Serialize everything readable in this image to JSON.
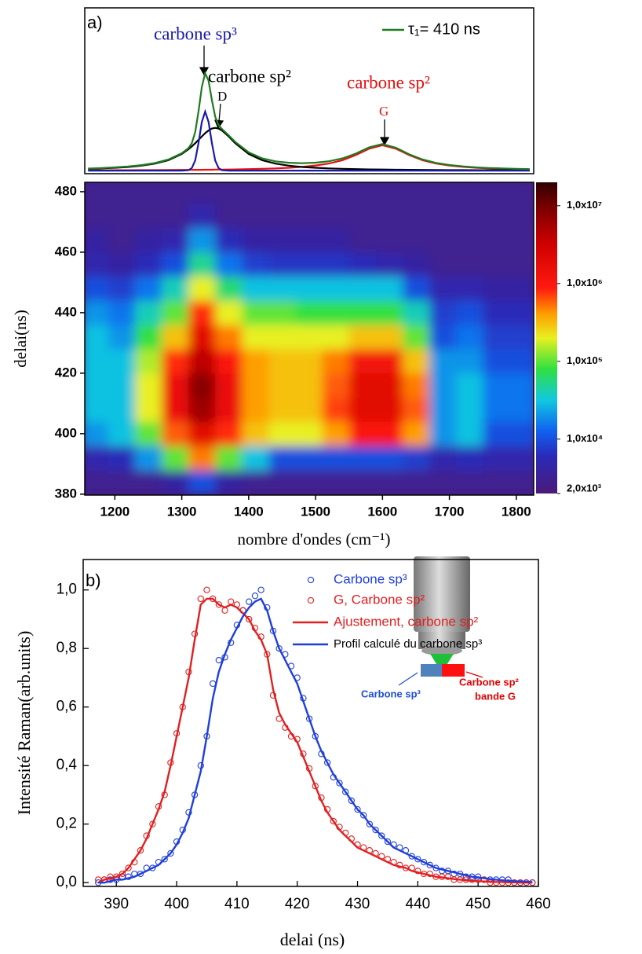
{
  "chart_data": [
    {
      "type": "line",
      "label": "a)",
      "x": [
        1160,
        1180,
        1200,
        1220,
        1240,
        1260,
        1280,
        1300,
        1310,
        1315,
        1320,
        1325,
        1330,
        1335,
        1340,
        1345,
        1350,
        1355,
        1360,
        1370,
        1380,
        1400,
        1420,
        1440,
        1460,
        1480,
        1500,
        1520,
        1540,
        1560,
        1580,
        1600,
        1620,
        1640,
        1660,
        1680,
        1700,
        1720,
        1740,
        1760,
        1780,
        1800,
        1820
      ],
      "xlim": [
        1155,
        1826
      ],
      "ylim": [
        -0.03,
        1.6
      ],
      "series": [
        {
          "color": "#e81010",
          "values": [
            0.003,
            0.003,
            0.004,
            0.004,
            0.005,
            0.005,
            0.006,
            0.007,
            0.007,
            0.007,
            0.008,
            0.008,
            0.008,
            0.009,
            0.009,
            0.009,
            0.01,
            0.01,
            0.01,
            0.011,
            0.012,
            0.015,
            0.018,
            0.022,
            0.028,
            0.037,
            0.05,
            0.07,
            0.102,
            0.152,
            0.216,
            0.25,
            0.216,
            0.152,
            0.102,
            0.07,
            0.05,
            0.037,
            0.028,
            0.022,
            0.018,
            0.015,
            0.012
          ]
        },
        {
          "color": "#000000",
          "values": [
            0.018,
            0.022,
            0.028,
            0.036,
            0.049,
            0.069,
            0.103,
            0.164,
            0.21,
            0.238,
            0.269,
            0.302,
            0.336,
            0.368,
            0.395,
            0.414,
            0.42,
            0.414,
            0.395,
            0.336,
            0.269,
            0.164,
            0.103,
            0.069,
            0.049,
            0.036,
            0.028,
            0.022,
            0.018,
            0.015,
            0.012,
            0.011,
            0.009,
            0.008,
            0.007,
            0.006,
            0.005,
            0.005,
            0.004,
            0.004,
            0.004,
            0.003,
            0.003
          ]
        },
        {
          "color": "#1a1aa8",
          "values": [
            0,
            0,
            0,
            0,
            0,
            0,
            0,
            0,
            0.004,
            0.025,
            0.1,
            0.27,
            0.48,
            0.58,
            0.48,
            0.27,
            0.1,
            0.025,
            0.004,
            0,
            0,
            0,
            0,
            0,
            0,
            0,
            0,
            0,
            0,
            0,
            0,
            0,
            0,
            0,
            0,
            0,
            0,
            0,
            0,
            0,
            0,
            0,
            0
          ]
        },
        {
          "name": "τ₁= 410 ns",
          "color": "#1f7a1f",
          "values": [
            0.02,
            0.025,
            0.032,
            0.04,
            0.054,
            0.074,
            0.109,
            0.171,
            0.221,
            0.27,
            0.377,
            0.58,
            0.824,
            0.957,
            0.884,
            0.693,
            0.53,
            0.449,
            0.409,
            0.347,
            0.281,
            0.179,
            0.121,
            0.091,
            0.077,
            0.073,
            0.078,
            0.092,
            0.12,
            0.167,
            0.228,
            0.261,
            0.225,
            0.16,
            0.109,
            0.076,
            0.055,
            0.042,
            0.032,
            0.026,
            0.022,
            0.018,
            0.015
          ]
        }
      ],
      "annotations": [
        {
          "text": "carbone sp³",
          "color": "#1a1aa8"
        },
        {
          "text": "carbone sp²",
          "color": "#000000"
        },
        {
          "text": "D",
          "color": "#000000"
        },
        {
          "text": "carbone sp²",
          "color": "#e81010"
        },
        {
          "text": "G",
          "color": "#e81010"
        }
      ]
    },
    {
      "type": "heatmap",
      "xlabel": "nombre d'ondes (cm⁻¹)",
      "ylabel": "delai(ns)",
      "x": [
        1170,
        1210,
        1250,
        1290,
        1330,
        1370,
        1410,
        1450,
        1490,
        1530,
        1570,
        1610,
        1650,
        1690,
        1730,
        1770,
        1810
      ],
      "y": [
        384,
        392,
        400,
        408,
        416,
        424,
        432,
        440,
        448,
        456,
        464,
        472,
        480
      ],
      "z": [
        [
          3000.0,
          3000.0,
          3000.0,
          4000.0,
          10000.0,
          4000.0,
          3000.0,
          3000.0,
          3000.0,
          3000.0,
          3000.0,
          3000.0,
          3000.0,
          3000.0,
          3000.0,
          3000.0,
          3000.0
        ],
        [
          5000.0,
          6000.0,
          20000.0,
          100000.0,
          500000.0,
          100000.0,
          30000.0,
          10000.0,
          10000.0,
          10000.0,
          10000.0,
          10000.0,
          8000.0,
          5000.0,
          6000.0,
          5000.0,
          5000.0
        ],
        [
          20000.0,
          30000.0,
          100000.0,
          600000.0,
          2000000.0,
          800000.0,
          300000.0,
          200000.0,
          200000.0,
          400000.0,
          1000000.0,
          1000000.0,
          400000.0,
          20000.0,
          30000.0,
          10000.0,
          10000.0
        ],
        [
          30000.0,
          30000.0,
          200000.0,
          1500000.0,
          6000000.0,
          1500000.0,
          400000.0,
          300000.0,
          300000.0,
          700000.0,
          2000000.0,
          2000000.0,
          600000.0,
          20000.0,
          30000.0,
          15000.0,
          15000.0
        ],
        [
          30000.0,
          30000.0,
          200000.0,
          1500000.0,
          8000000.0,
          1500000.0,
          400000.0,
          300000.0,
          300000.0,
          600000.0,
          2000000.0,
          2000000.0,
          500000.0,
          20000.0,
          30000.0,
          15000.0,
          15000.0
        ],
        [
          30000.0,
          30000.0,
          150000.0,
          800000.0,
          4000000.0,
          1000000.0,
          400000.0,
          300000.0,
          300000.0,
          500000.0,
          1200000.0,
          1200000.0,
          300000.0,
          20000.0,
          20000.0,
          10000.0,
          10000.0
        ],
        [
          30000.0,
          20000.0,
          80000.0,
          300000.0,
          2000000.0,
          500000.0,
          200000.0,
          200000.0,
          200000.0,
          200000.0,
          300000.0,
          300000.0,
          100000.0,
          10000.0,
          15000.0,
          8000.0,
          8000.0
        ],
        [
          20000.0,
          15000.0,
          40000.0,
          100000.0,
          800000.0,
          200000.0,
          100000.0,
          100000.0,
          80000.0,
          80000.0,
          80000.0,
          80000.0,
          40000.0,
          8000.0,
          10000.0,
          6000.0,
          6000.0
        ],
        [
          10000.0,
          8000.0,
          15000.0,
          40000.0,
          200000.0,
          60000.0,
          30000.0,
          30000.0,
          30000.0,
          30000.0,
          30000.0,
          30000.0,
          10000.0,
          5000.0,
          5000.0,
          4000.0,
          4000.0
        ],
        [
          5000.0,
          4000.0,
          6000.0,
          10000.0,
          50000.0,
          15000.0,
          8000.0,
          7000.0,
          7000.0,
          7000.0,
          6000.0,
          5000.0,
          4000.0,
          3000.0,
          3000.0,
          3000.0,
          3000.0
        ],
        [
          4000.0,
          3000.0,
          4000.0,
          5000.0,
          20000.0,
          6000.0,
          4000.0,
          4000.0,
          4000.0,
          4000.0,
          3000.0,
          3000.0,
          3000.0,
          3000.0,
          3000.0,
          3000.0,
          3000.0
        ],
        [
          3000.0,
          3000.0,
          3000.0,
          3000.0,
          5000.0,
          3000.0,
          3000.0,
          3000.0,
          3000.0,
          3000.0,
          3000.0,
          3000.0,
          3000.0,
          3000.0,
          3000.0,
          3000.0,
          3000.0
        ],
        [
          3000.0,
          3000.0,
          3000.0,
          3000.0,
          3000.0,
          3000.0,
          3000.0,
          3000.0,
          3000.0,
          3000.0,
          3000.0,
          3000.0,
          3000.0,
          3000.0,
          3000.0,
          3000.0,
          3000.0
        ]
      ],
      "xlim": [
        1155,
        1826
      ],
      "ylim": [
        379.7,
        483.1
      ],
      "xticks": [
        1200,
        1300,
        1400,
        1500,
        1600,
        1700,
        1800
      ],
      "yticks": [
        380,
        400,
        420,
        440,
        460,
        480
      ],
      "zscale": "log",
      "zlim": [
        2000,
        20000000
      ],
      "zticks": [
        {
          "value": 2000,
          "label": "2,0x10³"
        },
        {
          "value": 10000,
          "label": "1,0x10⁴"
        },
        {
          "value": 100000,
          "label": "1,0x10⁵"
        },
        {
          "value": 1000000,
          "label": "1,0x10⁶"
        },
        {
          "value": 10000000,
          "label": "1,0x10⁷"
        }
      ],
      "colorscale": [
        [
          0,
          "#4b1a7a"
        ],
        [
          0.12,
          "#2a2ab8"
        ],
        [
          0.2,
          "#1060f0"
        ],
        [
          0.3,
          "#10c8e0"
        ],
        [
          0.4,
          "#30e040"
        ],
        [
          0.5,
          "#e8f020"
        ],
        [
          0.58,
          "#ff9a00"
        ],
        [
          0.66,
          "#ff1a10"
        ],
        [
          0.8,
          "#d00000"
        ],
        [
          0.92,
          "#7a0000"
        ],
        [
          1,
          "#300000"
        ]
      ]
    },
    {
      "type": "scatter",
      "label": "b)",
      "xlabel": "delai (ns)",
      "ylabel": "Intensité Raman(arb.units)",
      "x": [
        387,
        388,
        389,
        390,
        391,
        392,
        393,
        394,
        395,
        396,
        397,
        398,
        399,
        400,
        401,
        402,
        403,
        404,
        405,
        406,
        407,
        408,
        409,
        410,
        411,
        412,
        413,
        414,
        415,
        416,
        417,
        418,
        419,
        420,
        421,
        422,
        423,
        424,
        425,
        426,
        427,
        428,
        429,
        430,
        431,
        432,
        433,
        434,
        435,
        436,
        437,
        438,
        439,
        440,
        441,
        442,
        443,
        444,
        445,
        446,
        447,
        448,
        449,
        450,
        451,
        452,
        453,
        454,
        455,
        456,
        457,
        458,
        459
      ],
      "xlim": [
        384.5,
        460
      ],
      "ylim": [
        -0.013,
        1.104
      ],
      "xticks": [
        390,
        400,
        410,
        420,
        430,
        440,
        450,
        460
      ],
      "yticks": [
        {
          "value": 0,
          "label": "0,0"
        },
        {
          "value": 0.2,
          "label": "0,2"
        },
        {
          "value": 0.4,
          "label": "0,4"
        },
        {
          "value": 0.6,
          "label": "0,6"
        },
        {
          "value": 0.8,
          "label": "0,8"
        },
        {
          "value": 1.0,
          "label": "1,0"
        }
      ],
      "series": [
        {
          "name": "Carbone sp³",
          "style": "markers",
          "color": "#1f3fd8",
          "values": [
            0,
            0.01,
            0.01,
            0.01,
            0.02,
            0.02,
            0.03,
            0.03,
            0.05,
            0.05,
            0.07,
            0.08,
            0.1,
            0.14,
            0.18,
            0.24,
            0.3,
            0.4,
            0.5,
            0.68,
            0.76,
            0.77,
            0.82,
            0.88,
            0.93,
            0.96,
            0.98,
            1.0,
            0.94,
            0.86,
            0.8,
            0.78,
            0.74,
            0.7,
            0.63,
            0.56,
            0.5,
            0.44,
            0.41,
            0.36,
            0.34,
            0.31,
            0.28,
            0.25,
            0.23,
            0.2,
            0.18,
            0.16,
            0.14,
            0.13,
            0.12,
            0.11,
            0.09,
            0.08,
            0.07,
            0.06,
            0.05,
            0.04,
            0.04,
            0.03,
            0.03,
            0.02,
            0.02,
            0.02,
            0.01,
            0.01,
            0.01,
            0.01,
            0.01,
            0,
            0,
            0,
            0
          ]
        },
        {
          "name": "G, Carbone sp²",
          "style": "markers",
          "color": "#e02020",
          "values": [
            0.01,
            0.01,
            0.02,
            0.02,
            0.03,
            0.05,
            0.07,
            0.11,
            0.16,
            0.2,
            0.26,
            0.3,
            0.41,
            0.51,
            0.6,
            0.72,
            0.85,
            0.97,
            1.0,
            0.97,
            0.95,
            0.93,
            0.96,
            0.95,
            0.93,
            0.9,
            0.87,
            0.84,
            0.78,
            0.64,
            0.56,
            0.53,
            0.5,
            0.49,
            0.44,
            0.39,
            0.33,
            0.29,
            0.25,
            0.21,
            0.19,
            0.17,
            0.15,
            0.13,
            0.12,
            0.11,
            0.1,
            0.09,
            0.08,
            0.07,
            0.06,
            0.05,
            0.05,
            0.04,
            0.03,
            0.03,
            0.02,
            0.02,
            0.02,
            0.01,
            0.01,
            0.01,
            0.01,
            0.01,
            0.01,
            0,
            0,
            0,
            0,
            0,
            0,
            0,
            0
          ]
        },
        {
          "name": "Ajustement, carbone sp²",
          "style": "line",
          "color": "#e02020",
          "values": [
            0,
            0.01,
            0.015,
            0.02,
            0.03,
            0.05,
            0.08,
            0.11,
            0.15,
            0.2,
            0.25,
            0.31,
            0.4,
            0.5,
            0.6,
            0.7,
            0.83,
            0.95,
            0.97,
            0.97,
            0.95,
            0.94,
            0.95,
            0.94,
            0.92,
            0.9,
            0.86,
            0.83,
            0.78,
            0.66,
            0.58,
            0.54,
            0.51,
            0.48,
            0.43,
            0.38,
            0.33,
            0.28,
            0.24,
            0.21,
            0.18,
            0.16,
            0.14,
            0.12,
            0.11,
            0.1,
            0.09,
            0.08,
            0.07,
            0.06,
            0.055,
            0.05,
            0.04,
            0.035,
            0.03,
            0.025,
            0.02,
            0.018,
            0.015,
            0.012,
            0.01,
            0.008,
            0.006,
            0.005,
            0.004,
            0.003,
            0.002,
            0.002,
            0.001,
            0.001,
            0,
            0,
            0
          ]
        },
        {
          "name": "Profil calculé du carbone sp³",
          "style": "line",
          "color": "#1f3fd8",
          "values": [
            0,
            0,
            0.005,
            0.01,
            0.01,
            0.015,
            0.02,
            0.03,
            0.04,
            0.05,
            0.06,
            0.08,
            0.1,
            0.13,
            0.17,
            0.22,
            0.3,
            0.38,
            0.5,
            0.63,
            0.72,
            0.78,
            0.83,
            0.87,
            0.91,
            0.94,
            0.96,
            0.97,
            0.93,
            0.86,
            0.8,
            0.76,
            0.72,
            0.68,
            0.62,
            0.56,
            0.5,
            0.45,
            0.41,
            0.37,
            0.34,
            0.31,
            0.28,
            0.25,
            0.23,
            0.2,
            0.18,
            0.16,
            0.14,
            0.12,
            0.11,
            0.1,
            0.09,
            0.08,
            0.07,
            0.06,
            0.05,
            0.045,
            0.04,
            0.035,
            0.03,
            0.025,
            0.02,
            0.018,
            0.015,
            0.012,
            0.01,
            0.008,
            0.006,
            0.005,
            0.004,
            0.003,
            0.002
          ]
        }
      ],
      "annotations": [
        {
          "text": "Carbone sp³",
          "color": "#1f4fd1"
        },
        {
          "text": "Carbone sp²",
          "color": "#e00000"
        },
        {
          "text": "bande G",
          "color": "#e00000"
        }
      ]
    }
  ]
}
